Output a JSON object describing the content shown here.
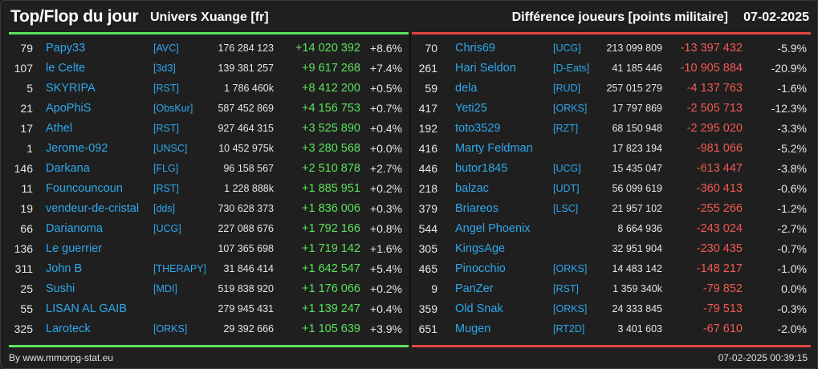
{
  "header": {
    "title": "Top/Flop du jour",
    "universe": "Univers Xuange [fr]",
    "metric": "Différence joueurs [points militaire]",
    "date": "07-02-2025"
  },
  "colors": {
    "accent_top": "#5be35b",
    "accent_flop": "#e0463f",
    "positive": "#5be35b",
    "negative": "#f25a52",
    "link": "#2fa8ec"
  },
  "top": [
    {
      "rank": "79",
      "name": "Papy33",
      "alliance": "[AVC]",
      "points": "176 284 123",
      "diff": "+14 020 392",
      "pct": "+8.6%"
    },
    {
      "rank": "107",
      "name": "le Celte",
      "alliance": "[3d3]",
      "points": "139 381 257",
      "diff": "+9 617 268",
      "pct": "+7.4%"
    },
    {
      "rank": "5",
      "name": "SKYRIPA",
      "alliance": "[RST]",
      "points": "1 786 460k",
      "diff": "+8 412 200",
      "pct": "+0.5%"
    },
    {
      "rank": "21",
      "name": "ApoPhiS",
      "alliance": "[ObsKur]",
      "points": "587 452 869",
      "diff": "+4 156 753",
      "pct": "+0.7%"
    },
    {
      "rank": "17",
      "name": "Athel",
      "alliance": "[RST]",
      "points": "927 464 315",
      "diff": "+3 525 890",
      "pct": "+0.4%"
    },
    {
      "rank": "1",
      "name": "Jerome-092",
      "alliance": "[UNSC]",
      "points": "10 452 975k",
      "diff": "+3 280 568",
      "pct": "+0.0%"
    },
    {
      "rank": "146",
      "name": "Darkana",
      "alliance": "[FLG]",
      "points": "96 158 567",
      "diff": "+2 510 878",
      "pct": "+2.7%"
    },
    {
      "rank": "11",
      "name": "Founcouncoun",
      "alliance": "[RST]",
      "points": "1 228 888k",
      "diff": "+1 885 951",
      "pct": "+0.2%"
    },
    {
      "rank": "19",
      "name": "vendeur-de-cristal",
      "alliance": "[dds]",
      "points": "730 628 373",
      "diff": "+1 836 006",
      "pct": "+0.3%"
    },
    {
      "rank": "66",
      "name": "Darianoma",
      "alliance": "[UCG]",
      "points": "227 088 676",
      "diff": "+1 792 166",
      "pct": "+0.8%"
    },
    {
      "rank": "136",
      "name": "Le guerrier",
      "alliance": "",
      "points": "107 365 698",
      "diff": "+1 719 142",
      "pct": "+1.6%"
    },
    {
      "rank": "311",
      "name": "John B",
      "alliance": "[THERAPY]",
      "points": "31 846 414",
      "diff": "+1 642 547",
      "pct": "+5.4%"
    },
    {
      "rank": "25",
      "name": "Sushi",
      "alliance": "[MDI]",
      "points": "519 838 920",
      "diff": "+1 176 066",
      "pct": "+0.2%"
    },
    {
      "rank": "55",
      "name": "LISAN AL GAIB",
      "alliance": "",
      "points": "279 945 431",
      "diff": "+1 139 247",
      "pct": "+0.4%"
    },
    {
      "rank": "325",
      "name": "Laroteck",
      "alliance": "[ORKS]",
      "points": "29 392 666",
      "diff": "+1 105 639",
      "pct": "+3.9%"
    }
  ],
  "flop": [
    {
      "rank": "70",
      "name": "Chris69",
      "alliance": "[UCG]",
      "points": "213 099 809",
      "diff": "-13 397 432",
      "pct": "-5.9%"
    },
    {
      "rank": "261",
      "name": "Hari Seldon",
      "alliance": "[D-Eats]",
      "points": "41 185 446",
      "diff": "-10 905 884",
      "pct": "-20.9%"
    },
    {
      "rank": "59",
      "name": "dela",
      "alliance": "[RUD]",
      "points": "257 015 279",
      "diff": "-4 137 763",
      "pct": "-1.6%"
    },
    {
      "rank": "417",
      "name": "Yeti25",
      "alliance": "[ORKS]",
      "points": "17 797 869",
      "diff": "-2 505 713",
      "pct": "-12.3%"
    },
    {
      "rank": "192",
      "name": "toto3529",
      "alliance": "[RZT]",
      "points": "68 150 948",
      "diff": "-2 295 020",
      "pct": "-3.3%"
    },
    {
      "rank": "416",
      "name": "Marty Feldman",
      "alliance": "",
      "points": "17 823 194",
      "diff": "-981 066",
      "pct": "-5.2%"
    },
    {
      "rank": "446",
      "name": "butor1845",
      "alliance": "[UCG]",
      "points": "15 435 047",
      "diff": "-613 447",
      "pct": "-3.8%"
    },
    {
      "rank": "218",
      "name": "balzac",
      "alliance": "[UDT]",
      "points": "56 099 619",
      "diff": "-360 413",
      "pct": "-0.6%"
    },
    {
      "rank": "379",
      "name": "Briareos",
      "alliance": "[LSC]",
      "points": "21 957 102",
      "diff": "-255 266",
      "pct": "-1.2%"
    },
    {
      "rank": "544",
      "name": "Angel Phoenix",
      "alliance": "",
      "points": "8 664 936",
      "diff": "-243 024",
      "pct": "-2.7%"
    },
    {
      "rank": "305",
      "name": "KingsAge",
      "alliance": "",
      "points": "32 951 904",
      "diff": "-230 435",
      "pct": "-0.7%"
    },
    {
      "rank": "465",
      "name": "Pinocchio",
      "alliance": "[ORKS]",
      "points": "14 483 142",
      "diff": "-148 217",
      "pct": "-1.0%"
    },
    {
      "rank": "9",
      "name": "PanZer",
      "alliance": "[RST]",
      "points": "1 359 340k",
      "diff": "-79 852",
      "pct": "0.0%"
    },
    {
      "rank": "359",
      "name": "Old Snak",
      "alliance": "[ORKS]",
      "points": "24 333 845",
      "diff": "-79 513",
      "pct": "-0.3%"
    },
    {
      "rank": "651",
      "name": "Mugen",
      "alliance": "[RT2D]",
      "points": "3 401 603",
      "diff": "-67 610",
      "pct": "-2.0%"
    }
  ],
  "footer": {
    "source": "By www.mmorpg-stat.eu",
    "timestamp": "07-02-2025 00:39:15"
  }
}
